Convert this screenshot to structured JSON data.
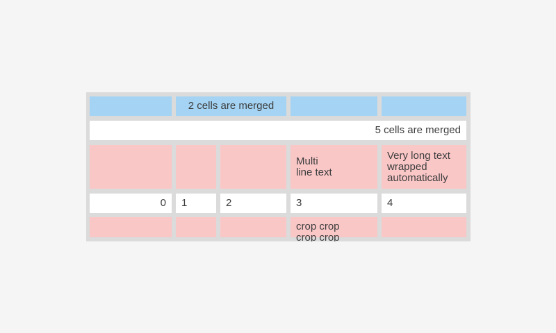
{
  "screen": {
    "background": "#f5f5f5"
  },
  "table": {
    "colors": {
      "container_bg": "#dbdbdb",
      "header_cell_bg": "#a4d3f3",
      "highlight_cell_bg": "#fac7c7",
      "cell_bg": "#ffffff",
      "text": "#3d3d3d"
    },
    "rows": [
      {
        "kind": "header-blue",
        "cells": [
          {
            "text": ""
          },
          {
            "text": "2 cells are merged",
            "span": 2,
            "align": "center"
          },
          {
            "text": ""
          },
          {
            "text": ""
          }
        ]
      },
      {
        "kind": "full-merge",
        "cells": [
          {
            "text": "5 cells are merged",
            "span": 5,
            "align": "right"
          }
        ]
      },
      {
        "kind": "highlight-pink",
        "cells": [
          {
            "text": ""
          },
          {
            "text": ""
          },
          {
            "text": ""
          },
          {
            "text": "Multi\nline text"
          },
          {
            "text": "Very long text wrapped automatically"
          }
        ]
      },
      {
        "kind": "numbers",
        "cells": [
          {
            "text": "0",
            "align": "right"
          },
          {
            "text": "1"
          },
          {
            "text": "2"
          },
          {
            "text": "3"
          },
          {
            "text": "4"
          }
        ]
      },
      {
        "kind": "highlight-pink-cropped",
        "cells": [
          {
            "text": ""
          },
          {
            "text": ""
          },
          {
            "text": ""
          },
          {
            "text": "crop crop crop crop"
          },
          {
            "text": ""
          }
        ]
      }
    ]
  }
}
